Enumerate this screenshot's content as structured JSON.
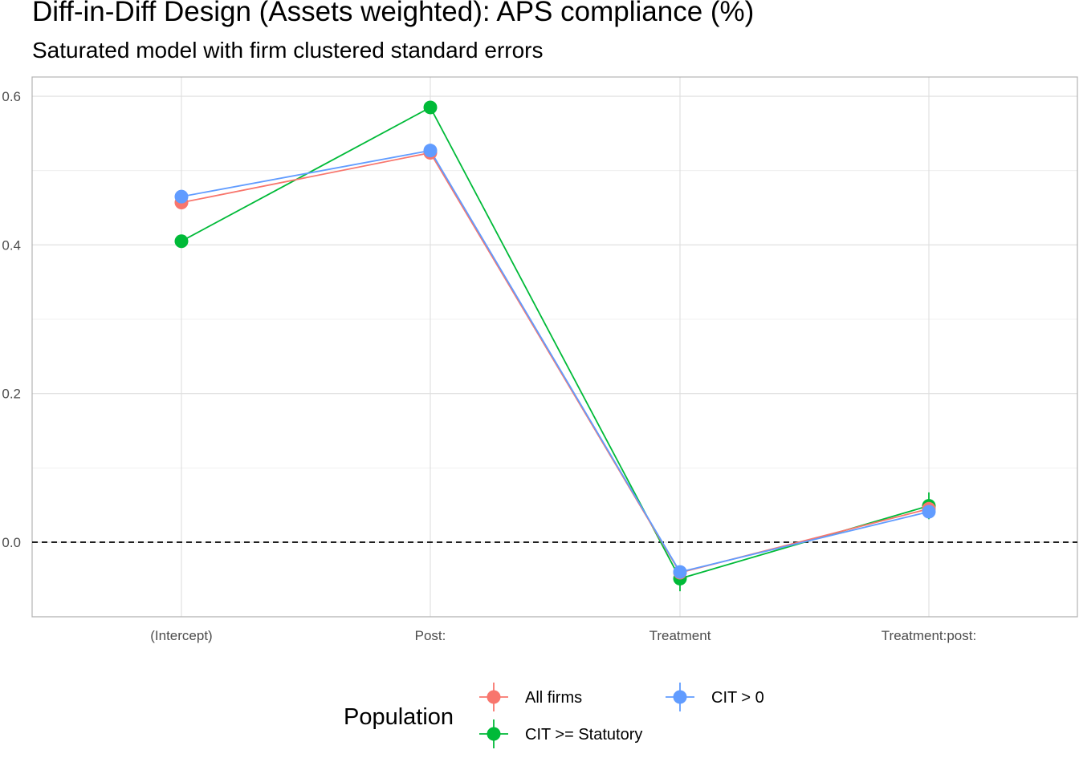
{
  "chart_data": {
    "type": "line",
    "title": "Diff-in-Diff Design (Assets weighted): APS compliance (%)",
    "subtitle": "Saturated model with firm clustered standard errors",
    "xlabel": "",
    "ylabel": "",
    "categories": [
      "(Intercept)",
      "Post:",
      "Treatment",
      "Treatment:post:"
    ],
    "ylim": [
      -0.1,
      0.62
    ],
    "yticks": [
      0.0,
      0.2,
      0.4,
      0.6
    ],
    "ytick_labels": [
      "0.0",
      "0.2",
      "0.4",
      "0.6"
    ],
    "grid": true,
    "reference_line": {
      "y": 0,
      "style": "dashed",
      "color": "#000000"
    },
    "legend": {
      "title": "Population",
      "position": "bottom"
    },
    "series": [
      {
        "name": "All firms",
        "color": "#F8766D",
        "values": [
          0.457,
          0.524,
          -0.041,
          0.045
        ],
        "ci_low": [
          0.454,
          0.521,
          -0.049,
          0.038
        ],
        "ci_high": [
          0.46,
          0.527,
          -0.033,
          0.052
        ]
      },
      {
        "name": "CIT >= Statutory",
        "color": "#00BA38",
        "values": [
          0.405,
          0.585,
          -0.049,
          0.049
        ],
        "ci_low": [
          0.402,
          0.582,
          -0.066,
          0.031
        ],
        "ci_high": [
          0.408,
          0.588,
          -0.032,
          0.067
        ]
      },
      {
        "name": "CIT > 0",
        "color": "#619CFF",
        "values": [
          0.465,
          0.527,
          -0.04,
          0.041
        ],
        "ci_low": [
          0.462,
          0.524,
          -0.047,
          0.034
        ],
        "ci_high": [
          0.468,
          0.53,
          -0.033,
          0.048
        ]
      }
    ]
  }
}
